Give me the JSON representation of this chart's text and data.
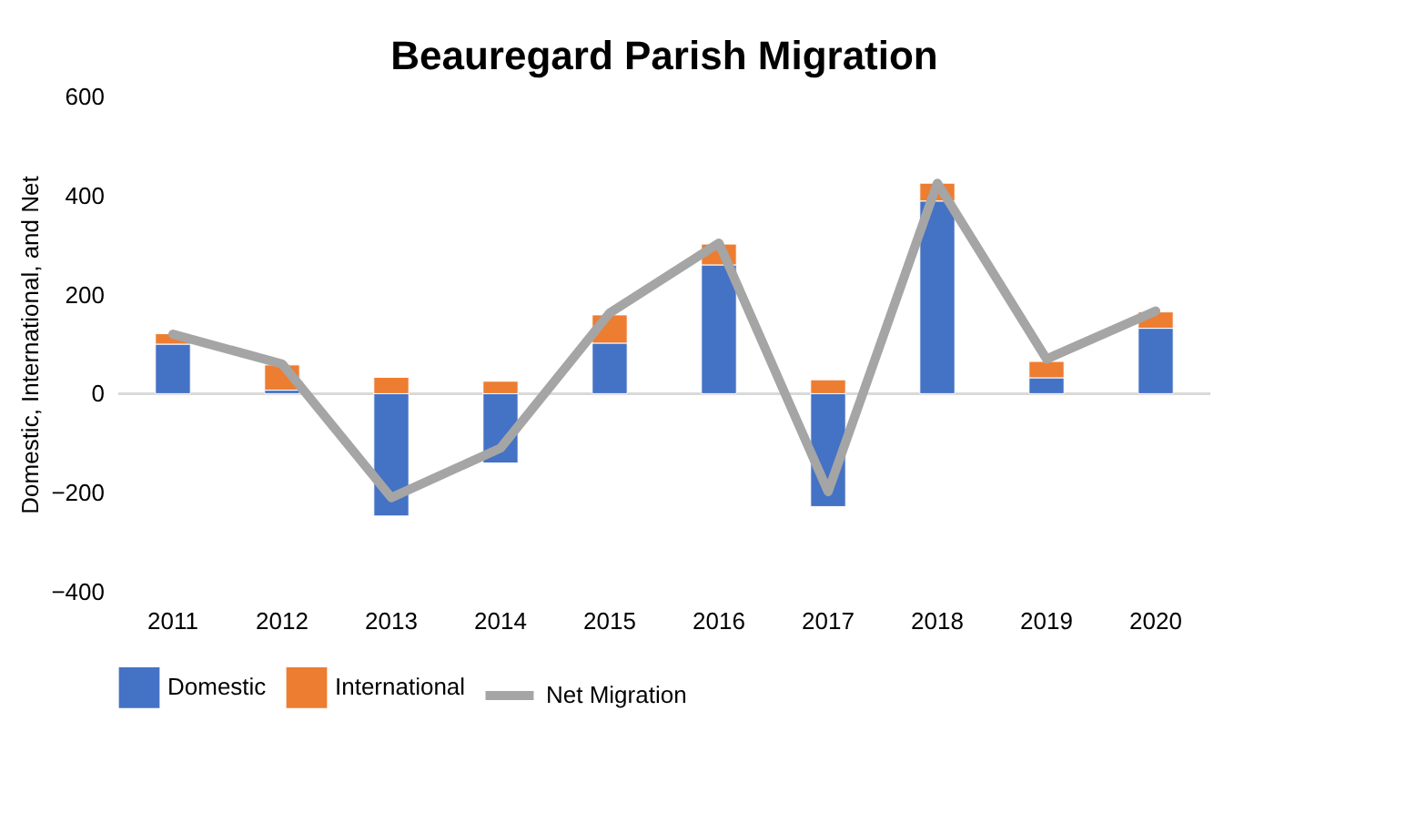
{
  "chart_data": {
    "type": "bar",
    "title": "Beauregard Parish Migration",
    "ylabel": "Domestic, International, and Net",
    "categories": [
      "2011",
      "2012",
      "2013",
      "2014",
      "2015",
      "2016",
      "2017",
      "2018",
      "2019",
      "2020"
    ],
    "stacked": true,
    "series": [
      {
        "name": "Domestic",
        "color": "#4472c4",
        "values": [
          100,
          7,
          -247,
          -140,
          102,
          260,
          -228,
          389,
          32,
          132
        ]
      },
      {
        "name": "International",
        "color": "#ed7d31",
        "values": [
          21,
          51,
          33,
          25,
          57,
          42,
          28,
          36,
          33,
          33
        ]
      },
      {
        "name": "Net Migration",
        "type": "line",
        "color": "#a5a5a5",
        "values": [
          120,
          60,
          -210,
          -110,
          163,
          304,
          -198,
          425,
          70,
          167
        ]
      }
    ],
    "ylim": [
      -400,
      600
    ],
    "yticks": [
      -400,
      -200,
      0,
      200,
      400,
      600
    ],
    "ref_lines": [
      {
        "axis": "y",
        "value": 0,
        "color": "#d9d9d9"
      }
    ],
    "grid": false,
    "legend": "bottom"
  }
}
